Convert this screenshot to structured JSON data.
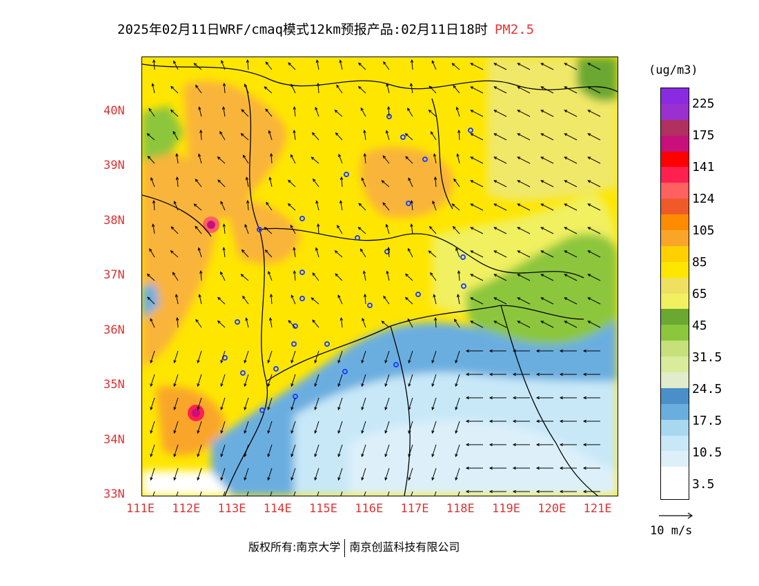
{
  "title": {
    "text": "2025年02月11日WRF/cmaq模式12km预报产品:02月11日18时",
    "pollutant": "PM2.5"
  },
  "map": {
    "lon_labels": [
      "111E",
      "112E",
      "113E",
      "114E",
      "115E",
      "116E",
      "117E",
      "118E",
      "119E",
      "120E",
      "121E"
    ],
    "lat_labels": [
      "40N",
      "39N",
      "38N",
      "37N",
      "36N",
      "35N",
      "34N",
      "33N"
    ],
    "lon_range": [
      111,
      121.4
    ],
    "lat_range": [
      33,
      41
    ]
  },
  "legend": {
    "unit": "(ug/m3)",
    "labels": [
      "225",
      "175",
      "141",
      "124",
      "105",
      "85",
      "65",
      "45",
      "31.5",
      "24.5",
      "17.5",
      "10.5",
      "3.5"
    ],
    "colors": [
      "#8a2be2",
      "#9b30d0",
      "#b03060",
      "#c8107a",
      "#ff0000",
      "#ff2050",
      "#ff6060",
      "#f05a28",
      "#ff8c00",
      "#f9a52a",
      "#ffd000",
      "#ffe600",
      "#f0e060",
      "#f0f060",
      "#6aa832",
      "#8cc63c",
      "#c6e07a",
      "#d8ec9c",
      "#e0eccc",
      "#4a90c8",
      "#6aaee0",
      "#a8d8f0",
      "#c8e8f8",
      "#ddf0fa",
      "#ffffff"
    ]
  },
  "wind_reference": "10 m/s",
  "footer": {
    "left": "版权所有:南京大学",
    "right": "南京创蓝科技有限公司"
  }
}
